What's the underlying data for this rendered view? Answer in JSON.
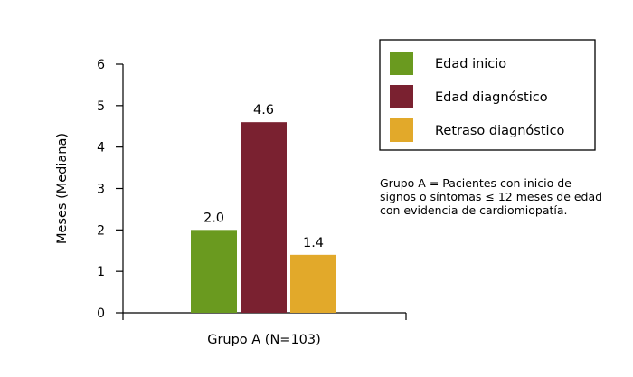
{
  "chart_data": {
    "type": "bar",
    "categories": [
      "Grupo A (N=103)"
    ],
    "series": [
      {
        "name": "Edad inicio",
        "values": [
          2.0
        ],
        "label": "2.0",
        "color": "#6a9a1f"
      },
      {
        "name": "Edad diagnóstico",
        "values": [
          4.6
        ],
        "label": "4.6",
        "color": "#7a2130"
      },
      {
        "name": "Retraso diagnóstico",
        "values": [
          1.4
        ],
        "label": "1.4",
        "color": "#e2a92a"
      }
    ],
    "xlabel": "Grupo A (N=103)",
    "ylabel": "Meses (Mediana)",
    "ylim": [
      0,
      6
    ],
    "yticks": [
      "0",
      "1",
      "2",
      "3",
      "4",
      "5",
      "6"
    ],
    "grid": false,
    "legend_position": "top-right"
  },
  "note": {
    "lines": [
      "Grupo A = Pacientes con inicio de",
      "signos o síntomas ≤ 12 meses de edad",
      "con evidencia de cardiomiopatía."
    ]
  }
}
